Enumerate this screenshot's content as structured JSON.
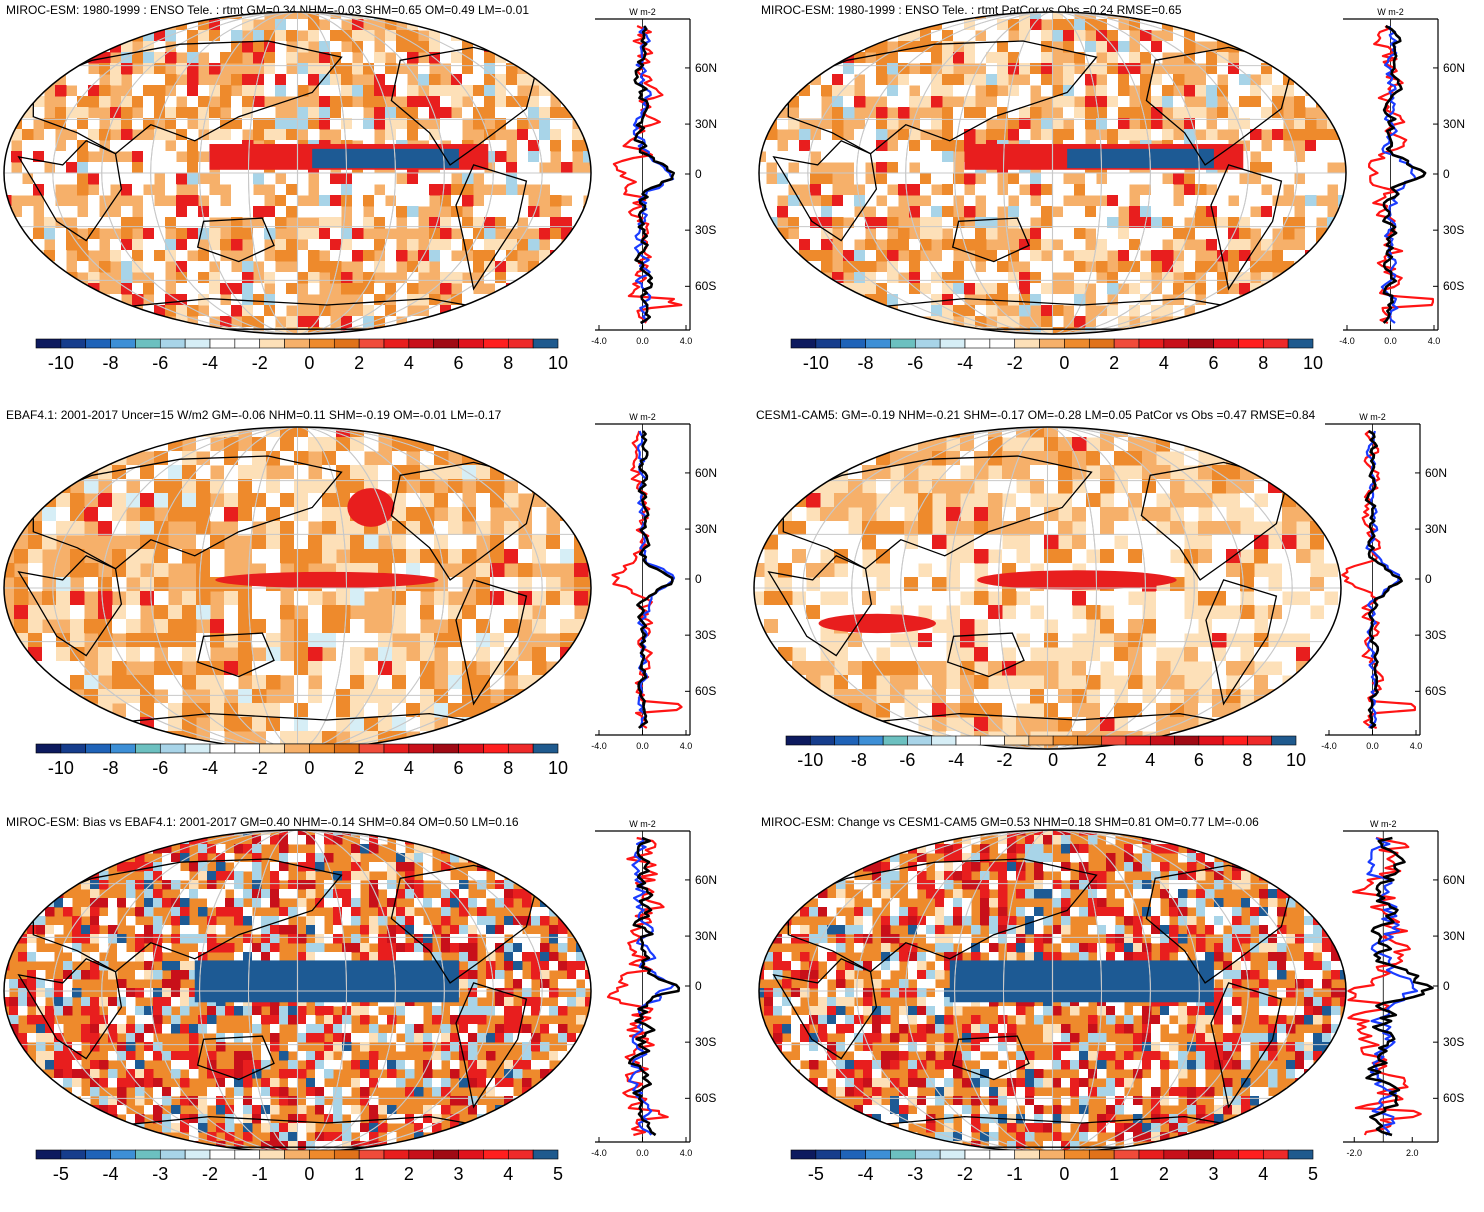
{
  "figure": {
    "panels": [
      {
        "id": "p1",
        "title": "MIROC-ESM: 1980-1999 : ENSO Tele. : rtmt GM=0.34 NHM=-0.03 SHM=0.65 OM=0.49 LM=-0.01",
        "colorbar_labels": [
          "-10",
          "-8",
          "-6",
          "-4",
          "-2",
          "0",
          "2",
          "4",
          "6",
          "8",
          "10"
        ],
        "profile": {
          "unit": "W m-2",
          "lat_labels": [
            "60N",
            "30N",
            "0",
            "30S",
            "60S"
          ],
          "x_labels": [
            "-4.0",
            "0.0",
            "4.0"
          ],
          "xlim": [
            -4,
            4
          ]
        },
        "style": "enso-strong"
      },
      {
        "id": "p2",
        "title": "MIROC-ESM: 1980-1999 : ENSO Tele. : rtmt PatCor vs Obs =0.24 RMSE=0.65",
        "colorbar_labels": [
          "-10",
          "-8",
          "-6",
          "-4",
          "-2",
          "0",
          "2",
          "4",
          "6",
          "8",
          "10"
        ],
        "profile": {
          "unit": "W m-2",
          "lat_labels": [
            "60N",
            "30N",
            "0",
            "30S",
            "60S"
          ],
          "x_labels": [
            "-4.0",
            "0.0",
            "4.0"
          ],
          "xlim": [
            -4,
            4
          ]
        },
        "style": "enso-strong"
      },
      {
        "id": "p3",
        "title": "EBAF4.1: 2001-2017 Uncer=15 W/m2 GM=-0.06 NHM=0.11 SHM=-0.19 OM=-0.01 LM=-0.17",
        "colorbar_labels": [
          "-10",
          "-8",
          "-6",
          "-4",
          "-2",
          "0",
          "2",
          "4",
          "6",
          "8",
          "10"
        ],
        "profile": {
          "unit": "W m-2",
          "lat_labels": [
            "60N",
            "30N",
            "0",
            "30S",
            "60S"
          ],
          "x_labels": [
            "-4.0",
            "0.0",
            "4.0"
          ],
          "xlim": [
            -4,
            4
          ]
        },
        "style": "obs-smooth"
      },
      {
        "id": "p4",
        "title": "CESM1-CAM5: GM=-0.19 NHM=-0.21 SHM=-0.17 OM=-0.28 LM=0.05 PatCor vs Obs =0.47 RMSE=0.84",
        "colorbar_labels": [
          "-10",
          "-8",
          "-6",
          "-4",
          "-2",
          "0",
          "2",
          "4",
          "6",
          "8",
          "10"
        ],
        "profile": {
          "unit": "W m-2",
          "lat_labels": [
            "60N",
            "30N",
            "0",
            "30S",
            "60S"
          ],
          "x_labels": [
            "-4.0",
            "0.0",
            "4.0"
          ],
          "xlim": [
            -4,
            4
          ]
        },
        "style": "model-smooth"
      },
      {
        "id": "p5",
        "title": "MIROC-ESM: Bias vs EBAF4.1: 2001-2017 GM=0.40 NHM=-0.14 SHM=0.84 OM=0.50 LM=0.16",
        "colorbar_labels": [
          "-5",
          "-4",
          "-3",
          "-2",
          "-1",
          "0",
          "1",
          "2",
          "3",
          "4",
          "5"
        ],
        "profile": {
          "unit": "W m-2",
          "lat_labels": [
            "60N",
            "30N",
            "0",
            "30S",
            "60S"
          ],
          "x_labels": [
            "-4.0",
            "0.0",
            "4.0"
          ],
          "xlim": [
            -4,
            4
          ]
        },
        "style": "bias-noisy"
      },
      {
        "id": "p6",
        "title": "MIROC-ESM: Change vs CESM1-CAM5 GM=0.53 NHM=0.18 SHM=0.81 OM=0.77 LM=-0.06",
        "colorbar_labels": [
          "-5",
          "-4",
          "-3",
          "-2",
          "-1",
          "0",
          "1",
          "2",
          "3",
          "4",
          "5"
        ],
        "profile": {
          "unit": "W m-2",
          "lat_labels": [
            "60N",
            "30N",
            "0",
            "30S",
            "60S"
          ],
          "x_labels": [
            "-2.0",
            "2.0"
          ],
          "xlim": [
            -2.5,
            3.5
          ]
        },
        "style": "bias-noisy"
      }
    ],
    "colorbar_colors": [
      "#0d1a5e",
      "#163d8c",
      "#1f63b8",
      "#3d8fd6",
      "#6cc0c0",
      "#a8d4e8",
      "#d6eef6",
      "#ffffff",
      "#ffffff",
      "#fde0b8",
      "#f6b06a",
      "#ee8a2c",
      "#e0721a",
      "#f04b3a",
      "#e81e1e",
      "#c8101a",
      "#a00a14",
      "#e0121c",
      "#ff1f1f",
      "#ee2a2a",
      "#1f5a8e"
    ],
    "series_colors": {
      "model": "#000000",
      "ocean": "#1a3cff",
      "land": "#ff1414"
    }
  }
}
